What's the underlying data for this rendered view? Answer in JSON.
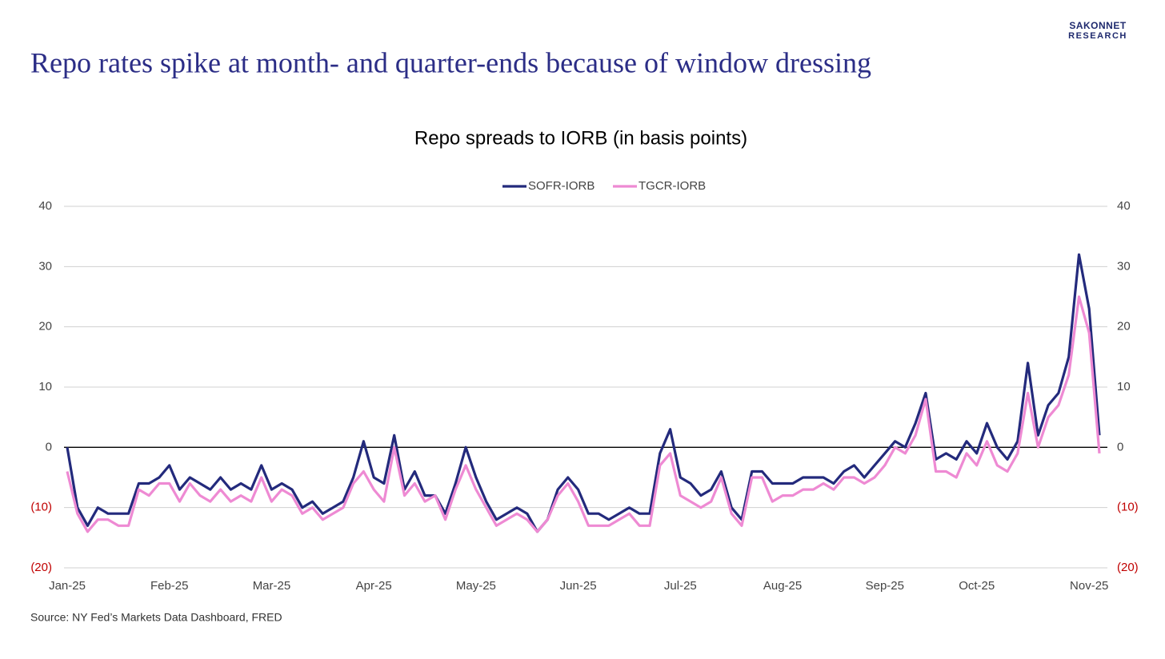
{
  "logo": {
    "line1": "SAKONNET",
    "line2": "RESEARCH"
  },
  "headline": "Repo rates spike at month- and quarter-ends because of window dressing",
  "source": "Source: NY Fed’s Markets Data Dashboard, FRED",
  "chart_data": {
    "type": "line",
    "title": "Repo spreads to IORB (in basis points)",
    "categories": [
      "Jan-25",
      null,
      null,
      null,
      null,
      null,
      null,
      null,
      null,
      null,
      "Feb-25",
      null,
      null,
      null,
      null,
      null,
      null,
      null,
      null,
      null,
      "Mar-25",
      null,
      null,
      null,
      null,
      null,
      null,
      null,
      null,
      null,
      "Apr-25",
      null,
      null,
      null,
      null,
      null,
      null,
      null,
      null,
      null,
      "May-25",
      null,
      null,
      null,
      null,
      null,
      null,
      null,
      null,
      null,
      "Jun-25",
      null,
      null,
      null,
      null,
      null,
      null,
      null,
      null,
      null,
      "Jul-25",
      null,
      null,
      null,
      null,
      null,
      null,
      null,
      null,
      null,
      "Aug-25",
      null,
      null,
      null,
      null,
      null,
      null,
      null,
      null,
      null,
      "Sep-25",
      null,
      null,
      null,
      null,
      null,
      null,
      null,
      null,
      "Oct-25",
      null,
      null,
      null,
      null,
      null,
      null,
      null,
      null,
      null,
      null,
      "Nov-25",
      null
    ],
    "series": [
      {
        "name": "SOFR-IORB",
        "color": "#232a7c",
        "values": [
          0,
          -10,
          -13,
          -10,
          -11,
          -11,
          -11,
          -6,
          -6,
          -5,
          -3,
          -7,
          -5,
          -6,
          -7,
          -5,
          -7,
          -6,
          -7,
          -3,
          -7,
          -6,
          -7,
          -10,
          -9,
          -11,
          -10,
          -9,
          -5,
          1,
          -5,
          -6,
          2,
          -7,
          -4,
          -8,
          -8,
          -11,
          -6,
          0,
          -5,
          -9,
          -12,
          -11,
          -10,
          -11,
          -14,
          -12,
          -7,
          -5,
          -7,
          -11,
          -11,
          -12,
          -11,
          -10,
          -11,
          -11,
          -1,
          3,
          -5,
          -6,
          -8,
          -7,
          -4,
          -10,
          -12,
          -4,
          -4,
          -6,
          -6,
          -6,
          -5,
          -5,
          -5,
          -6,
          -4,
          -3,
          -5,
          -3,
          -1,
          1,
          0,
          4,
          9,
          -2,
          -1,
          -2,
          1,
          -1,
          4,
          0,
          -2,
          1,
          14,
          2,
          7,
          9,
          15,
          32,
          23,
          2
        ]
      },
      {
        "name": "TGCR-IORB",
        "color": "#ee8ad3",
        "values": [
          -4,
          -11,
          -14,
          -12,
          -12,
          -13,
          -13,
          -7,
          -8,
          -6,
          -6,
          -9,
          -6,
          -8,
          -9,
          -7,
          -9,
          -8,
          -9,
          -5,
          -9,
          -7,
          -8,
          -11,
          -10,
          -12,
          -11,
          -10,
          -6,
          -4,
          -7,
          -9,
          0,
          -8,
          -6,
          -9,
          -8,
          -12,
          -7,
          -3,
          -7,
          -10,
          -13,
          -12,
          -11,
          -12,
          -14,
          -12,
          -8,
          -6,
          -9,
          -13,
          -13,
          -13,
          -12,
          -11,
          -13,
          -13,
          -3,
          -1,
          -8,
          -9,
          -10,
          -9,
          -5,
          -11,
          -13,
          -5,
          -5,
          -9,
          -8,
          -8,
          -7,
          -7,
          -6,
          -7,
          -5,
          -5,
          -6,
          -5,
          -3,
          0,
          -1,
          2,
          8,
          -4,
          -4,
          -5,
          -1,
          -3,
          1,
          -3,
          -4,
          -1,
          9,
          0,
          5,
          7,
          12,
          25,
          19,
          -1
        ]
      }
    ],
    "ylim": [
      -20,
      40
    ],
    "yticks": [
      {
        "value": -20,
        "label": "(20)"
      },
      {
        "value": -10,
        "label": "(10)"
      },
      0,
      10,
      20,
      30,
      40
    ],
    "y2lim": [
      -20,
      40
    ],
    "y2ticks": [
      {
        "value": -20,
        "label": "(20)"
      },
      {
        "value": -10,
        "label": "(10)"
      },
      0,
      10,
      20,
      30,
      40
    ],
    "negative_tick_color": "#c00000",
    "grid": true,
    "legend": "top"
  }
}
